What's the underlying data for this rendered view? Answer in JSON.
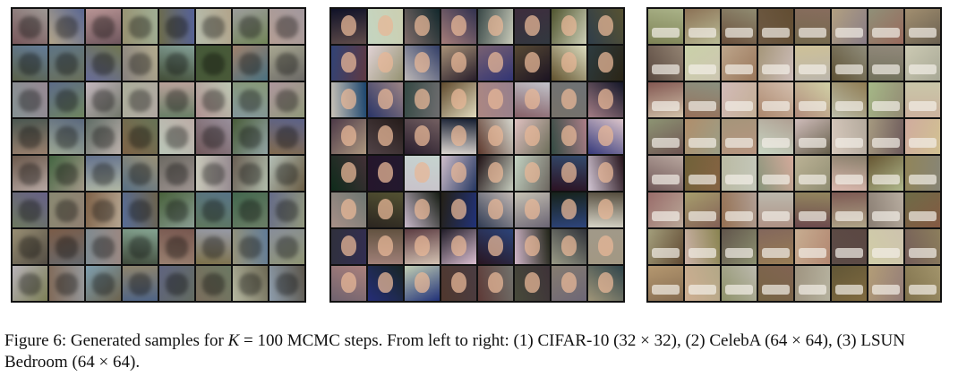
{
  "figure": {
    "panels": [
      {
        "name": "CIFAR-10",
        "rows": 8,
        "cols": 8
      },
      {
        "name": "CelebA",
        "rows": 8,
        "cols": 8
      },
      {
        "name": "LSUN Bedroom",
        "rows": 8,
        "cols": 8
      }
    ]
  },
  "caption": {
    "label": "Figure 6:",
    "text_before_var": "Generated samples for",
    "variable": "K",
    "text_after_var": "= 100 MCMC steps. From left to right: (1) CIFAR-10 (32 × 32), (2) CelebA (64 × 64), (3) LSUN Bedroom (64 × 64)."
  }
}
